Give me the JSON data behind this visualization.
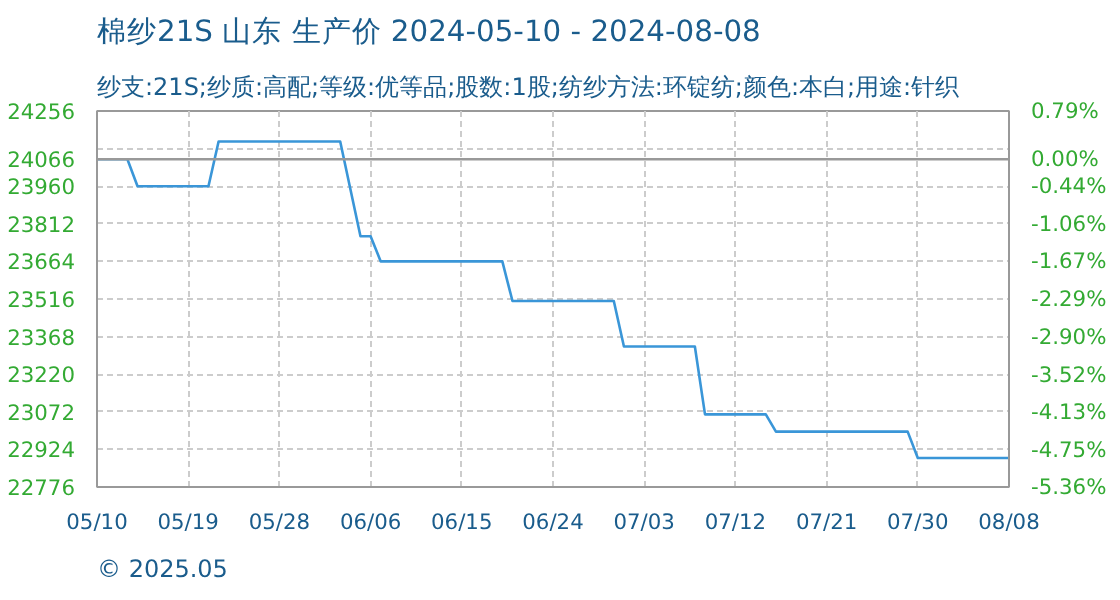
{
  "chart_data": {
    "type": "line",
    "title": "棉纱21S 山东 生产价 2024-05-10 - 2024-08-08",
    "subtitle": "纱支:21S;纱质:高配;等级:优等品;股数:1股;纺纱方法:环锭纺;颜色:本白;用途:针织",
    "annotations": [
      "© 2025.05"
    ],
    "x": [
      "2024-05-10",
      "2024-05-13",
      "2024-05-14",
      "2024-05-21",
      "2024-05-22",
      "2024-06-03",
      "2024-06-05",
      "2024-06-06",
      "2024-06-07",
      "2024-06-19",
      "2024-06-20",
      "2024-06-30",
      "2024-07-01",
      "2024-07-08",
      "2024-07-09",
      "2024-07-15",
      "2024-07-16",
      "2024-07-29",
      "2024-07-30",
      "2024-08-08"
    ],
    "series": [
      {
        "color": "#3a96d8",
        "values": [
          24066,
          24066,
          23960,
          23960,
          24136,
          24136,
          23763,
          23763,
          23664,
          23664,
          23508,
          23508,
          23329,
          23329,
          23062,
          23062,
          22994,
          22994,
          22890,
          22890
        ]
      }
    ],
    "xlim": [
      "2024-05-10",
      "2024-08-08"
    ],
    "xticks": [
      {
        "value": "2024-05-10",
        "label": "05/10"
      },
      {
        "value": "2024-05-19",
        "label": "05/19"
      },
      {
        "value": "2024-05-28",
        "label": "05/28"
      },
      {
        "value": "2024-06-06",
        "label": "06/06"
      },
      {
        "value": "2024-06-15",
        "label": "06/15"
      },
      {
        "value": "2024-06-24",
        "label": "06/24"
      },
      {
        "value": "2024-07-03",
        "label": "07/03"
      },
      {
        "value": "2024-07-12",
        "label": "07/12"
      },
      {
        "value": "2024-07-21",
        "label": "07/21"
      },
      {
        "value": "2024-07-30",
        "label": "07/30"
      },
      {
        "value": "2024-08-08",
        "label": "08/08"
      }
    ],
    "ylim": [
      22776,
      24256
    ],
    "yticks": [
      22776,
      22924,
      23072,
      23220,
      23368,
      23516,
      23664,
      23812,
      23960,
      24066,
      {
        "value": 24108,
        "label": null
      },
      24256
    ],
    "y2lim": [
      -5.36,
      0.79
    ],
    "y2ticks": [
      {
        "value": -5.36,
        "label": "-5.36%"
      },
      {
        "value": -4.75,
        "label": "-4.75%"
      },
      {
        "value": -4.13,
        "label": "-4.13%"
      },
      {
        "value": -3.52,
        "label": "-3.52%"
      },
      {
        "value": -2.9,
        "label": "-2.90%"
      },
      {
        "value": -2.29,
        "label": "-2.29%"
      },
      {
        "value": -1.67,
        "label": "-1.67%"
      },
      {
        "value": -1.06,
        "label": "-1.06%"
      },
      {
        "value": -0.44,
        "label": "-0.44%"
      },
      {
        "value": 0.0,
        "label": "0.00%"
      },
      {
        "value": 0.79,
        "label": "0.79%"
      }
    ],
    "ref_lines": [
      {
        "axis": "y",
        "value": 24066,
        "color": "#999999"
      }
    ],
    "grid": true
  }
}
